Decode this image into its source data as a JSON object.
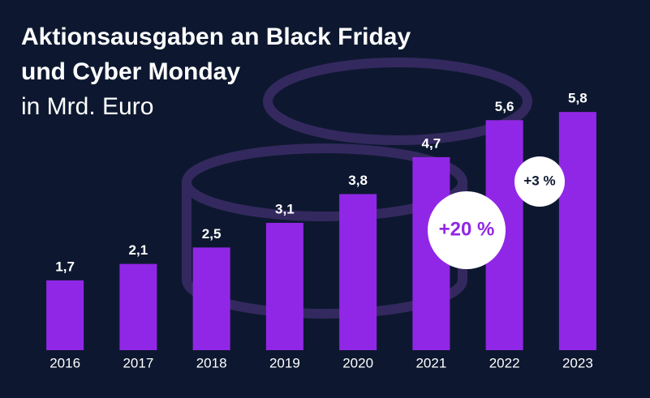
{
  "chart_data": {
    "type": "bar",
    "title": [
      "Aktionsausgaben an Black Friday",
      "und Cyber Monday"
    ],
    "subtitle": "in Mrd. Euro",
    "categories": [
      "2016",
      "2017",
      "2018",
      "2019",
      "2020",
      "2021",
      "2022",
      "2023"
    ],
    "values": [
      1.7,
      2.1,
      2.5,
      3.1,
      3.8,
      4.7,
      5.6,
      5.8
    ],
    "value_labels": [
      "1,7",
      "2,1",
      "2,5",
      "3,1",
      "3,8",
      "4,7",
      "5,6",
      "5,8"
    ],
    "color": "#9127e6",
    "ylim": [
      0,
      6
    ],
    "annotations": [
      "+20 %",
      "+3 %"
    ]
  }
}
